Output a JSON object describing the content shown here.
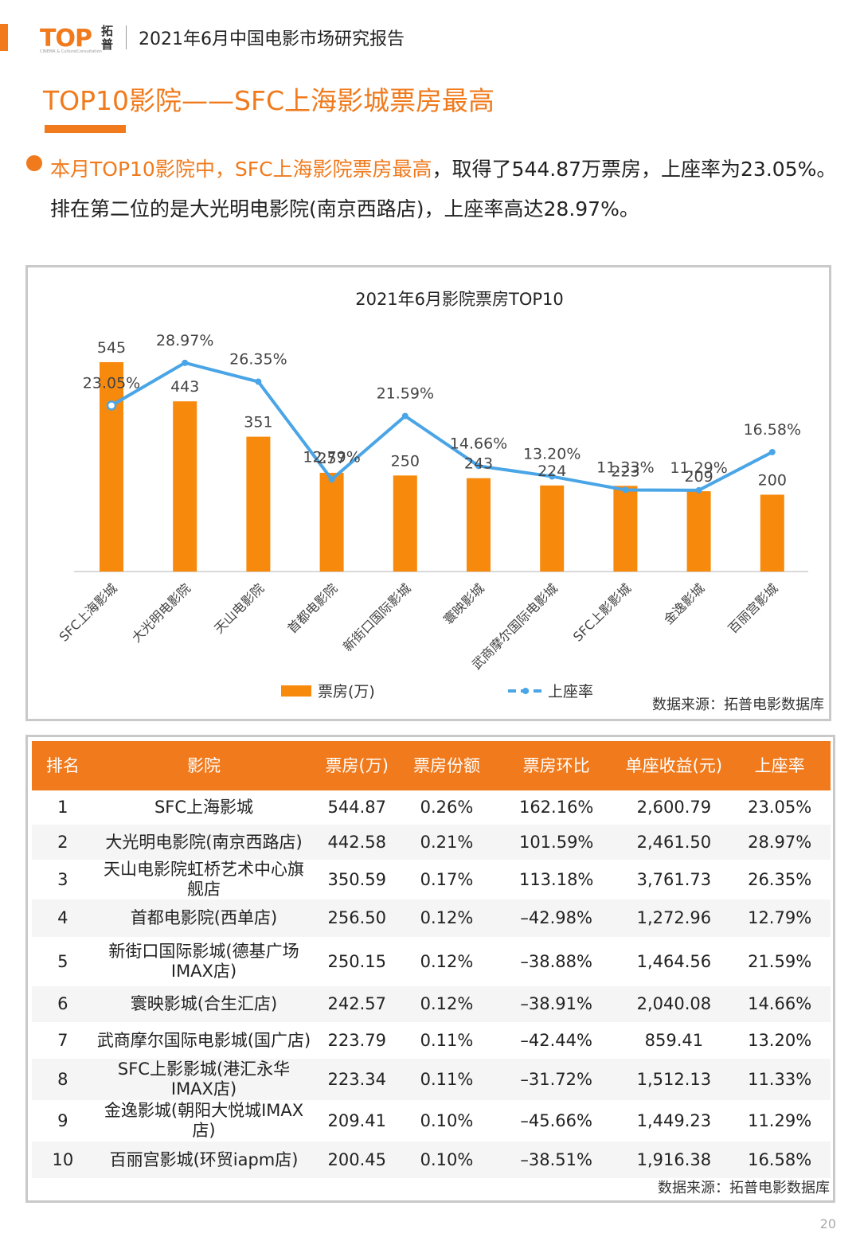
{
  "header": {
    "logo_text": "TOP",
    "logo_cn": "拓普",
    "logo_sub": "CINEMA & CulturalConsultation",
    "report_title": "2021年6月中国电影市场研究报告"
  },
  "main_title": "TOP10影院——SFC上海影城票房最高",
  "summary": {
    "highlight": "本月TOP10影院中，SFC上海影院票房最高",
    "rest": "，取得了544.87万票房，上座率为23.05%。排在第二位的是大光明电影院(南京西路店)，上座率高达28.97%。"
  },
  "chart_data": {
    "type": "bar",
    "title": "2021年6月影院票房TOP10",
    "categories": [
      "SFC上海影城",
      "大光明电影院",
      "天山电影院",
      "首都电影院",
      "新街口国际影城",
      "寰映影城",
      "武商摩尔国际电影城",
      "SFC上影影城",
      "金逸影城",
      "百丽宫影城"
    ],
    "series": [
      {
        "name": "票房(万)",
        "type": "bar",
        "axis": "left",
        "values": [
          545,
          443,
          351,
          257,
          250,
          243,
          224,
          223,
          209,
          200
        ],
        "labels": [
          "545",
          "443",
          "351",
          "257",
          "250",
          "243",
          "224",
          "223",
          "209",
          "200"
        ]
      },
      {
        "name": "上座率",
        "type": "line",
        "axis": "right",
        "values": [
          23.05,
          28.97,
          26.35,
          12.79,
          21.59,
          14.66,
          13.2,
          11.33,
          11.29,
          16.58
        ],
        "labels": [
          "23.05%",
          "28.97%",
          "26.35%",
          "12.79%",
          "21.59%",
          "14.66%",
          "13.20%",
          "11.33%",
          "11.29%",
          "16.58%"
        ]
      }
    ],
    "ylim_left": [
      0,
      600
    ],
    "ylim_right": [
      0,
      40
    ],
    "legend_position": "bottom",
    "grid": false,
    "colors": {
      "bar": "#f7890c",
      "line": "#4aa5e6"
    }
  },
  "chart_source": "数据来源：拓普电影数据库",
  "table": {
    "headers": [
      "排名",
      "影院",
      "票房(万)",
      "票房份额",
      "票房环比",
      "单座收益(元)",
      "上座率"
    ],
    "rows": [
      [
        "1",
        "SFC上海影城",
        "544.87",
        "0.26%",
        "162.16%",
        "2,600.79",
        "23.05%"
      ],
      [
        "2",
        "大光明电影院(南京西路店)",
        "442.58",
        "0.21%",
        "101.59%",
        "2,461.50",
        "28.97%"
      ],
      [
        "3",
        "天山电影院虹桥艺术中心旗舰店",
        "350.59",
        "0.17%",
        "113.18%",
        "3,761.73",
        "26.35%"
      ],
      [
        "4",
        "首都电影院(西单店)",
        "256.50",
        "0.12%",
        "–42.98%",
        "1,272.96",
        "12.79%"
      ],
      [
        "5",
        "新街口国际影城(德基广场IMAX店)",
        "250.15",
        "0.12%",
        "–38.88%",
        "1,464.56",
        "21.59%"
      ],
      [
        "6",
        "寰映影城(合生汇店)",
        "242.57",
        "0.12%",
        "–38.91%",
        "2,040.08",
        "14.66%"
      ],
      [
        "7",
        "武商摩尔国际电影城(国广店)",
        "223.79",
        "0.11%",
        "–42.44%",
        "859.41",
        "13.20%"
      ],
      [
        "8",
        "SFC上影影城(港汇永华IMAX店)",
        "223.34",
        "0.11%",
        "–31.72%",
        "1,512.13",
        "11.33%"
      ],
      [
        "9",
        "金逸影城(朝阳大悦城IMAX店)",
        "209.41",
        "0.10%",
        "–45.66%",
        "1,449.23",
        "11.29%"
      ],
      [
        "10",
        "百丽宫影城(环贸iapm店)",
        "200.45",
        "0.10%",
        "–38.51%",
        "1,916.38",
        "16.58%"
      ]
    ]
  },
  "table_source": "数据来源：拓普电影数据库",
  "page_number": "20"
}
